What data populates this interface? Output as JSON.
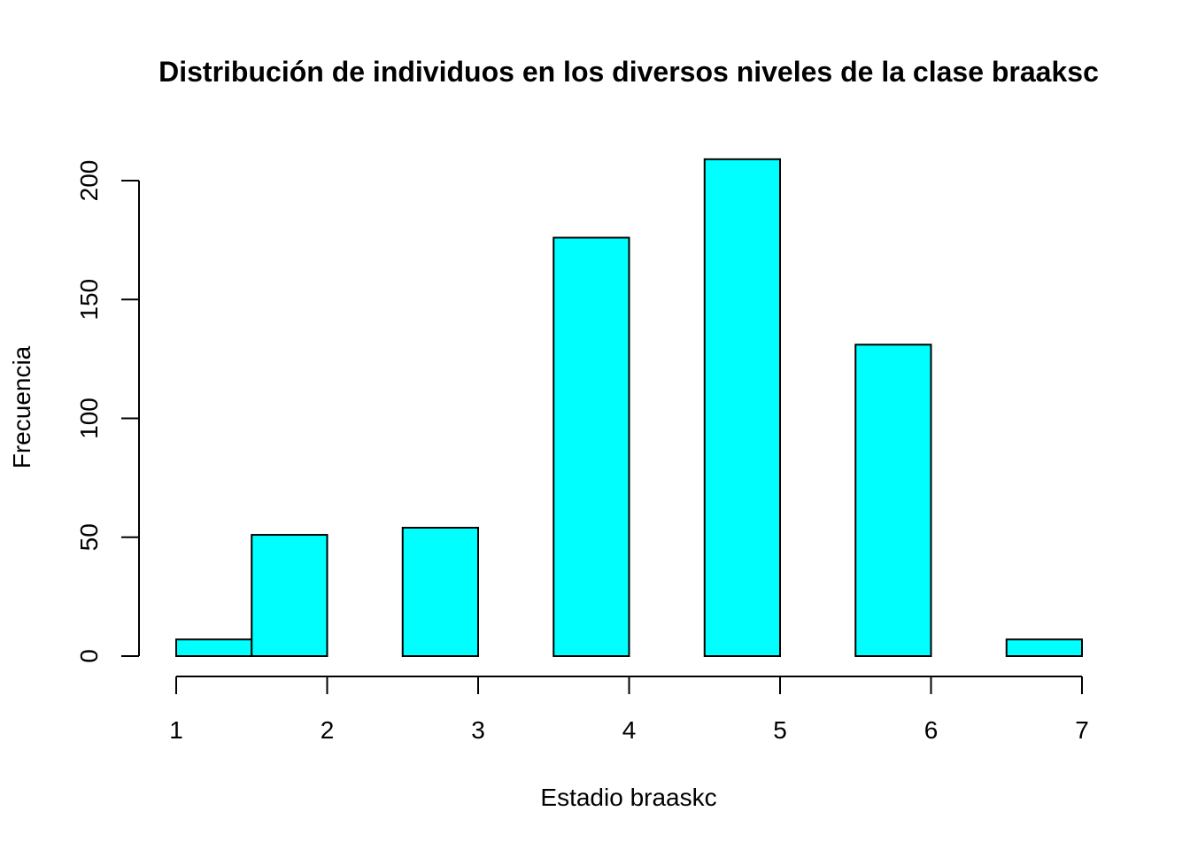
{
  "chart_data": {
    "type": "bar",
    "title": "Distribución de individuos en los diversos niveles de la clase braaksc",
    "xlabel": "Estadio braaskc",
    "ylabel": "Frecuencia",
    "bar_color": "#00FFFF",
    "bins": [
      {
        "x0": 1.0,
        "x1": 1.5,
        "value": 7
      },
      {
        "x0": 1.5,
        "x1": 2.0,
        "value": 51
      },
      {
        "x0": 2.0,
        "x1": 2.5,
        "value": 0
      },
      {
        "x0": 2.5,
        "x1": 3.0,
        "value": 54
      },
      {
        "x0": 3.0,
        "x1": 3.5,
        "value": 0
      },
      {
        "x0": 3.5,
        "x1": 4.0,
        "value": 176
      },
      {
        "x0": 4.0,
        "x1": 4.5,
        "value": 0
      },
      {
        "x0": 4.5,
        "x1": 5.0,
        "value": 209
      },
      {
        "x0": 5.0,
        "x1": 5.5,
        "value": 0
      },
      {
        "x0": 5.5,
        "x1": 6.0,
        "value": 131
      },
      {
        "x0": 6.0,
        "x1": 6.5,
        "value": 0
      },
      {
        "x0": 6.5,
        "x1": 7.0,
        "value": 7
      }
    ],
    "xlim": [
      1,
      7
    ],
    "ylim": [
      0,
      209
    ],
    "x_ticks": [
      "1",
      "2",
      "3",
      "4",
      "5",
      "6",
      "7"
    ],
    "y_ticks": [
      "0",
      "50",
      "100",
      "150",
      "200"
    ],
    "grid": false,
    "legend": "none"
  }
}
